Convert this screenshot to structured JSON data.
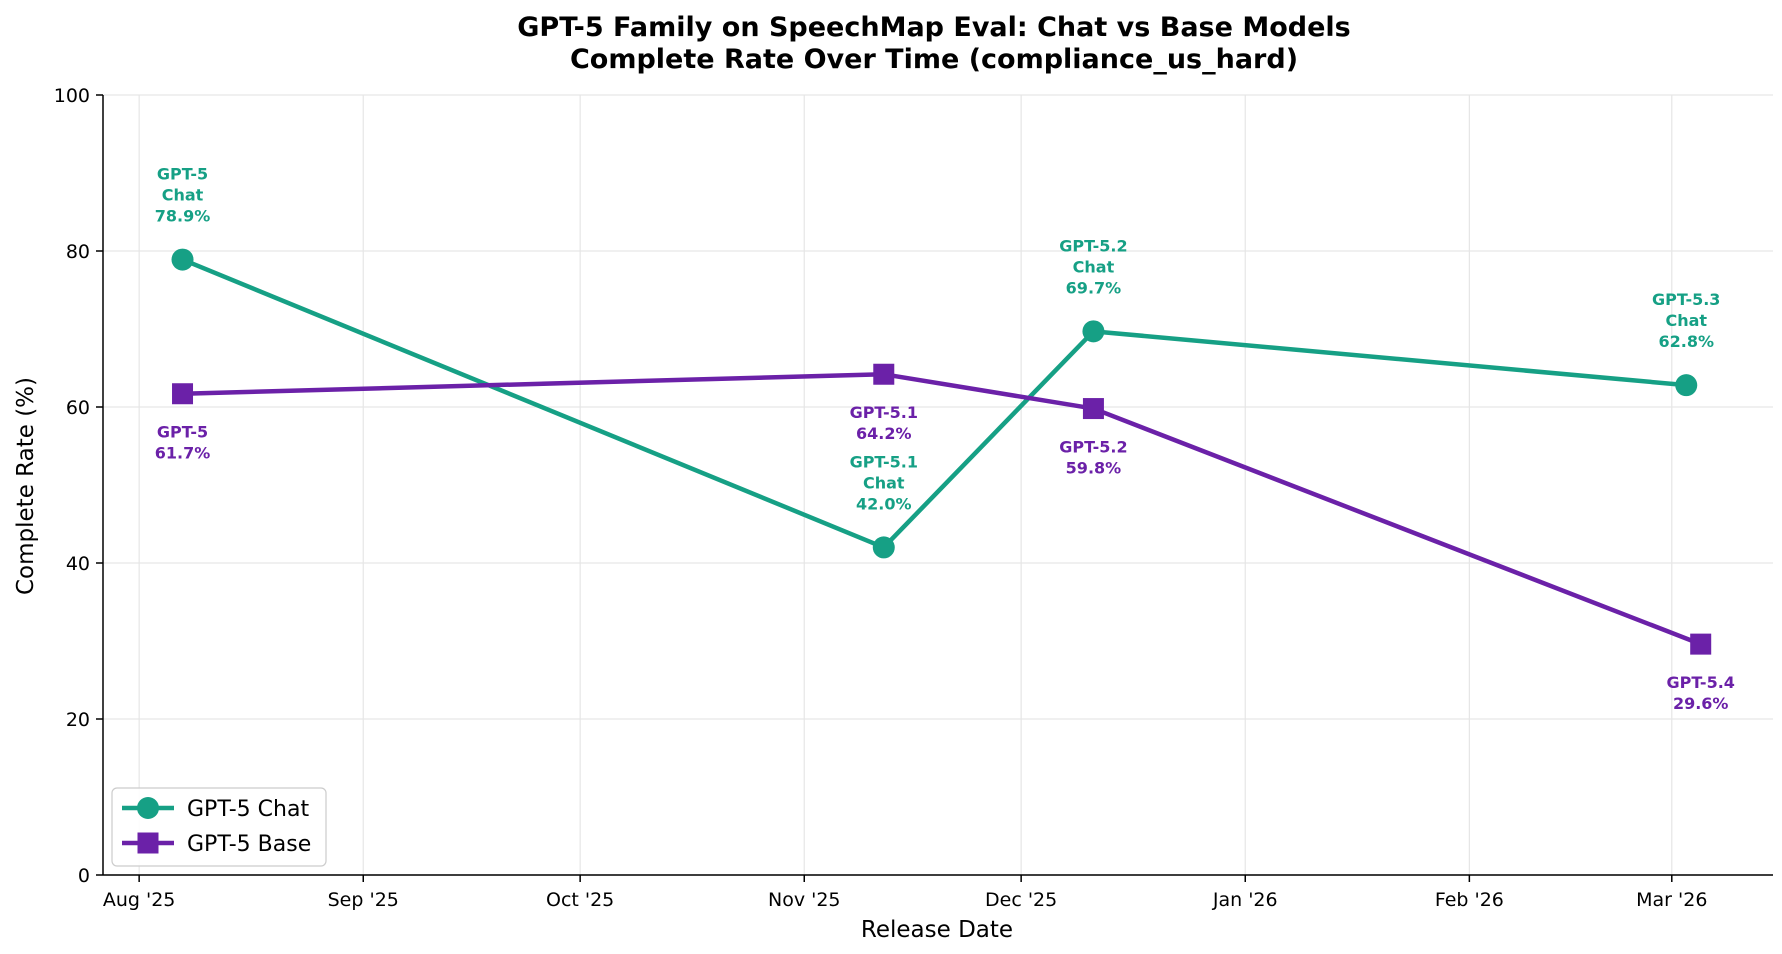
{
  "chart_data": {
    "type": "line",
    "title": "GPT-5 Family on SpeechMap Eval: Chat vs Base Models",
    "subtitle": "Complete Rate Over Time (compliance_us_hard)",
    "xlabel": "Release Date",
    "ylabel": "Complete Rate (%)",
    "ylim": [
      0,
      100
    ],
    "yticks": [
      0,
      20,
      40,
      60,
      80,
      100
    ],
    "xlim": [
      "2025-07-27",
      "2026-03-15"
    ],
    "xticks": [
      {
        "date": "2025-08-01",
        "label": "Aug '25"
      },
      {
        "date": "2025-09-01",
        "label": "Sep '25"
      },
      {
        "date": "2025-10-01",
        "label": "Oct '25"
      },
      {
        "date": "2025-11-01",
        "label": "Nov '25"
      },
      {
        "date": "2025-12-01",
        "label": "Dec '25"
      },
      {
        "date": "2026-01-01",
        "label": "Jan '26"
      },
      {
        "date": "2026-02-01",
        "label": "Feb '26"
      },
      {
        "date": "2026-03-01",
        "label": "Mar '26"
      }
    ],
    "grid": true,
    "legend_position": "lower-left",
    "series": [
      {
        "name": "GPT-5 Chat",
        "color": "#16a085",
        "marker": "circle",
        "points": [
          {
            "date": "2025-08-07",
            "value": 78.9,
            "label": [
              "GPT-5",
              "Chat",
              "78.9%"
            ],
            "label_position": "above"
          },
          {
            "date": "2025-11-12",
            "value": 42.0,
            "label": [
              "GPT-5.1",
              "Chat",
              "42.0%"
            ],
            "label_position": "above"
          },
          {
            "date": "2025-12-11",
            "value": 69.7,
            "label": [
              "GPT-5.2",
              "Chat",
              "69.7%"
            ],
            "label_position": "above"
          },
          {
            "date": "2026-03-03",
            "value": 62.8,
            "label": [
              "GPT-5.3",
              "Chat",
              "62.8%"
            ],
            "label_position": "above"
          }
        ]
      },
      {
        "name": "GPT-5 Base",
        "color": "#6b21a8",
        "marker": "square",
        "points": [
          {
            "date": "2025-08-07",
            "value": 61.7,
            "label": [
              "GPT-5",
              "61.7%"
            ],
            "label_position": "below"
          },
          {
            "date": "2025-11-12",
            "value": 64.2,
            "label": [
              "GPT-5.1",
              "64.2%"
            ],
            "label_position": "below"
          },
          {
            "date": "2025-12-11",
            "value": 59.8,
            "label": [
              "GPT-5.2",
              "59.8%"
            ],
            "label_position": "below"
          },
          {
            "date": "2026-03-05",
            "value": 29.6,
            "label": [
              "GPT-5.4",
              "29.6%"
            ],
            "label_position": "below"
          }
        ]
      }
    ]
  }
}
